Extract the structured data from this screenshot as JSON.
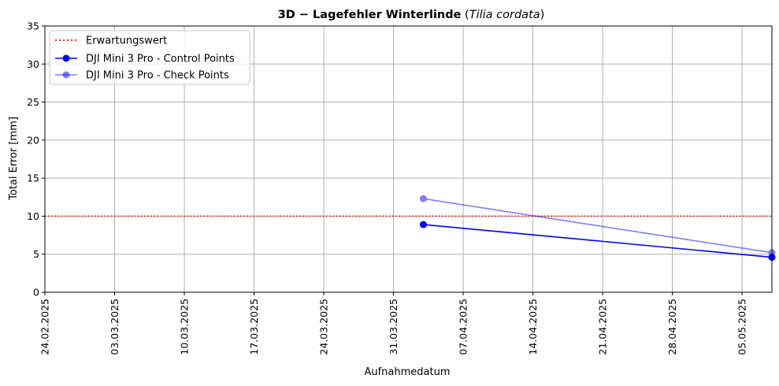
{
  "chart_data": {
    "type": "line",
    "title": {
      "bold": "3D − Lagefehler Winterlinde",
      "open": " (",
      "italic": "Tilia cordata",
      "close": ")"
    },
    "xlabel": "Aufnahmedatum",
    "ylabel": "Total Error [mm]",
    "x_axis_type": "date",
    "xlim": [
      "24.02.2025",
      "08.05.2025"
    ],
    "ylim": [
      0,
      35
    ],
    "x_ticks": [
      "24.02.2025",
      "03.03.2025",
      "10.03.2025",
      "17.03.2025",
      "24.03.2025",
      "31.03.2025",
      "07.04.2025",
      "14.04.2025",
      "21.04.2025",
      "28.04.2025",
      "05.05.2025"
    ],
    "y_ticks": [
      0,
      5,
      10,
      15,
      20,
      25,
      30,
      35
    ],
    "grid": true,
    "legend_position": "top-left",
    "reference_line": {
      "name": "Erwartungswert",
      "y": 10,
      "color": "#ff0000",
      "style": "dotted"
    },
    "series": [
      {
        "name": "DJI Mini 3 Pro - Control Points",
        "color": "#0000ff",
        "opacity": 1,
        "x": [
          "03.04.2025",
          "08.05.2025"
        ],
        "values": [
          8.9,
          4.6
        ]
      },
      {
        "name": "DJI Mini 3 Pro - Check Points",
        "color": "#0000ff",
        "opacity": 0.5,
        "x": [
          "03.04.2025",
          "08.05.2025"
        ],
        "values": [
          12.3,
          5.2
        ]
      }
    ]
  }
}
